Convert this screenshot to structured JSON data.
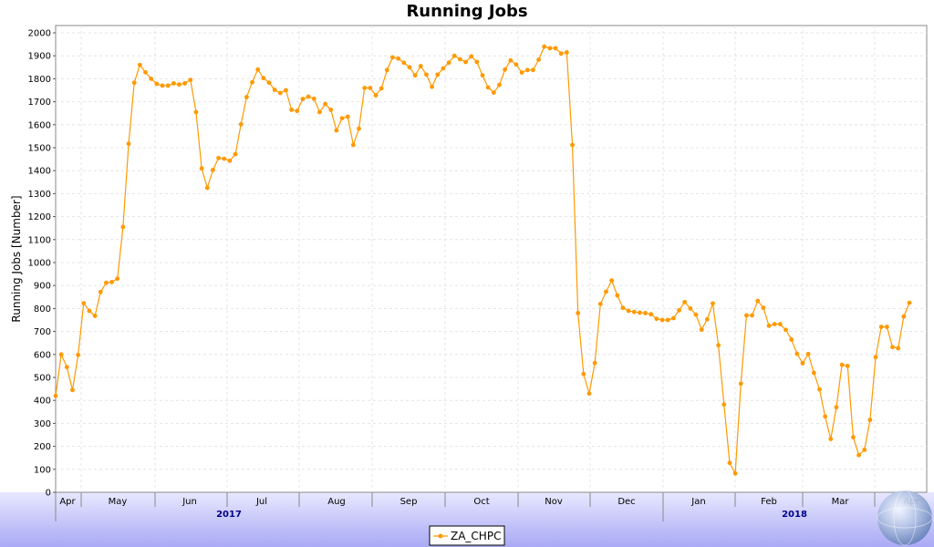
{
  "chart_data": {
    "type": "line",
    "title": "Running Jobs",
    "xlabel": "",
    "ylabel": "Running Jobs [Number]",
    "ylim": [
      0,
      2000
    ],
    "yticks": [
      0,
      100,
      200,
      300,
      400,
      500,
      600,
      700,
      800,
      900,
      1000,
      1100,
      1200,
      1300,
      1400,
      1500,
      1600,
      1700,
      1800,
      1900,
      2000
    ],
    "grid": true,
    "legend_position": "bottom-center",
    "series_color": "#ff9900",
    "month_ticks": [
      "Apr",
      "May",
      "Jun",
      "Jul",
      "Aug",
      "Sep",
      "Oct",
      "Nov",
      "Dec",
      "Jan",
      "Feb",
      "Mar",
      "Apr"
    ],
    "year_ticks": [
      "2017",
      "2018"
    ],
    "series": [
      {
        "name": "ZA_CHPC",
        "values": [
          420,
          600,
          545,
          445,
          598,
          823,
          790,
          768,
          872,
          912,
          915,
          930,
          1155,
          1517,
          1783,
          1860,
          1828,
          1800,
          1778,
          1770,
          1770,
          1780,
          1775,
          1780,
          1795,
          1655,
          1410,
          1325,
          1403,
          1455,
          1452,
          1443,
          1472,
          1602,
          1720,
          1785,
          1840,
          1803,
          1783,
          1752,
          1738,
          1750,
          1665,
          1660,
          1712,
          1722,
          1713,
          1655,
          1690,
          1665,
          1575,
          1628,
          1635,
          1512,
          1583,
          1760,
          1760,
          1728,
          1758,
          1838,
          1893,
          1888,
          1870,
          1850,
          1815,
          1855,
          1818,
          1765,
          1818,
          1845,
          1870,
          1900,
          1885,
          1873,
          1897,
          1873,
          1815,
          1762,
          1740,
          1773,
          1840,
          1880,
          1862,
          1827,
          1838,
          1838,
          1883,
          1940,
          1933,
          1933,
          1910,
          1915,
          1512,
          780,
          515,
          430,
          563,
          820,
          873,
          922,
          857,
          803,
          790,
          785,
          782,
          780,
          775,
          755,
          750,
          750,
          758,
          792,
          828,
          800,
          773,
          708,
          753,
          822,
          640,
          382,
          128,
          82,
          473,
          770,
          770,
          833,
          803,
          725,
          732,
          732,
          707,
          665,
          603,
          562,
          602,
          520,
          448,
          330,
          232,
          370,
          555,
          550,
          240,
          162,
          185,
          315,
          588,
          720,
          720,
          632,
          627,
          765,
          825
        ]
      }
    ]
  }
}
